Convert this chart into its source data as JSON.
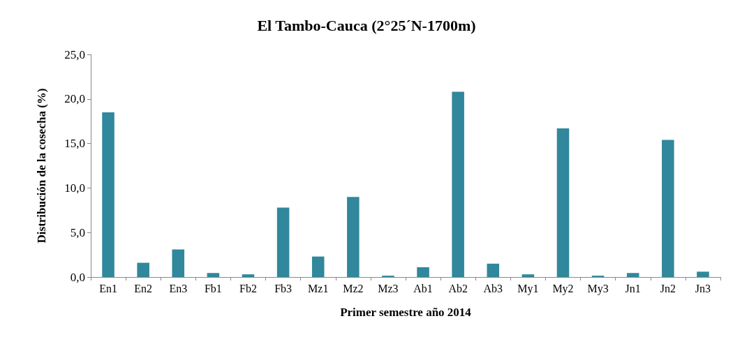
{
  "chart_data": {
    "type": "bar",
    "title": "El Tambo-Cauca (2°25´N-1700m)",
    "xlabel": "Primer semestre año 2014",
    "ylabel": "Distribución de la cosecha (%)",
    "categories": [
      "En1",
      "En2",
      "En3",
      "Fb1",
      "Fb2",
      "Fb3",
      "Mz1",
      "Mz2",
      "Mz3",
      "Ab1",
      "Ab2",
      "Ab3",
      "My1",
      "My2",
      "My3",
      "Jn1",
      "Jn2",
      "Jn3"
    ],
    "values": [
      18.5,
      1.6,
      3.1,
      0.45,
      0.3,
      7.8,
      2.3,
      9.0,
      0.15,
      1.1,
      20.8,
      1.5,
      0.3,
      16.7,
      0.15,
      0.45,
      15.4,
      0.6
    ],
    "color": "#31879c",
    "ylim": [
      0,
      25
    ],
    "yticks": [
      {
        "value": 0,
        "label": "0,0"
      },
      {
        "value": 5,
        "label": "5,0"
      },
      {
        "value": 10,
        "label": "10,0"
      },
      {
        "value": 15,
        "label": "15,0"
      },
      {
        "value": 20,
        "label": "20,0"
      },
      {
        "value": 25,
        "label": "25,0"
      }
    ],
    "grid": false
  }
}
